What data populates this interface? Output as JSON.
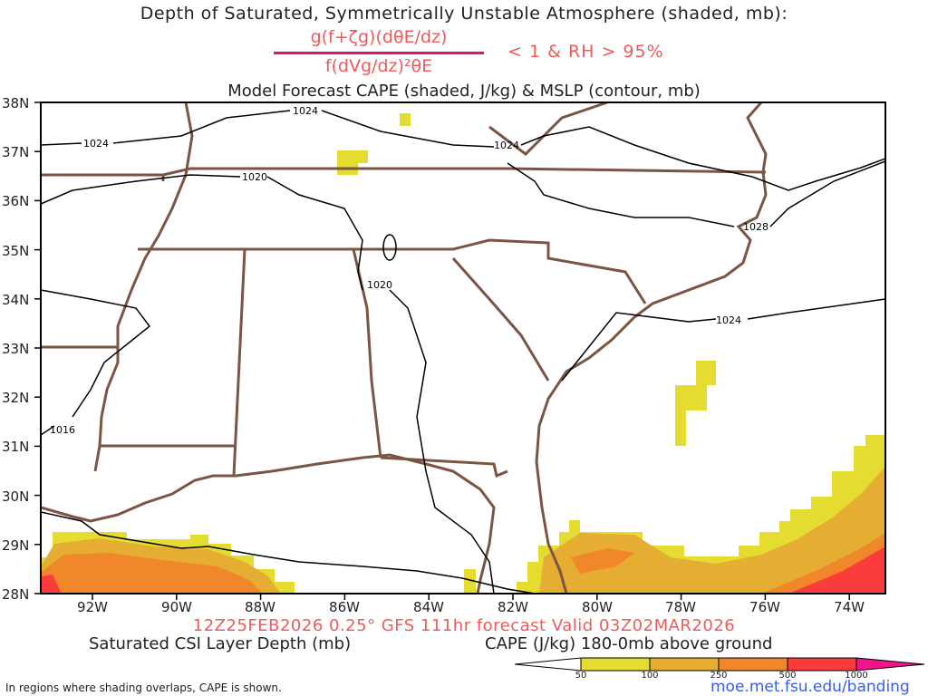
{
  "header": {
    "title_line1": "Depth of Saturated, Symmetrically Unstable Atmosphere (shaded, mb):",
    "formula_numerator": "g(f+ζg)(dθE/dz)",
    "formula_denominator": "f(dVg/dz)²θE",
    "formula_condition": "< 1 & RH > 95%",
    "title_line3": "Model Forecast CAPE (shaded, J/kg) & MSLP (contour, mb)"
  },
  "map": {
    "lat_labels": [
      "38N",
      "37N",
      "36N",
      "35N",
      "34N",
      "33N",
      "32N",
      "31N",
      "30N",
      "29N",
      "28N"
    ],
    "lon_labels": [
      "92W",
      "90W",
      "88W",
      "86W",
      "84W",
      "82W",
      "80W",
      "78W",
      "76W",
      "74W"
    ],
    "contour_labels": [
      "1024",
      "1024",
      "1024",
      "1020",
      "1020",
      "1028",
      "1024",
      "1016"
    ],
    "colors": {
      "border": "#7a5543",
      "contour": "#000000",
      "frame": "#000000"
    }
  },
  "footer": {
    "valid_line": "12Z25FEB2026 0.25° GFS 111hr forecast Valid 03Z02MAR2026",
    "left_label": "Saturated CSI Layer Depth (mb)",
    "right_label": "CAPE (J/kg) 180-0mb above ground",
    "note": "In regions where shading overlaps, CAPE is shown.",
    "url": "moe.met.fsu.edu/banding"
  },
  "colorbar": {
    "ticks": [
      "50",
      "100",
      "250",
      "500",
      "1000"
    ],
    "colors": [
      "#ffffff",
      "#e5dc32",
      "#e5ae32",
      "#f0872a",
      "#fa3c3c",
      "#f0148c"
    ]
  }
}
